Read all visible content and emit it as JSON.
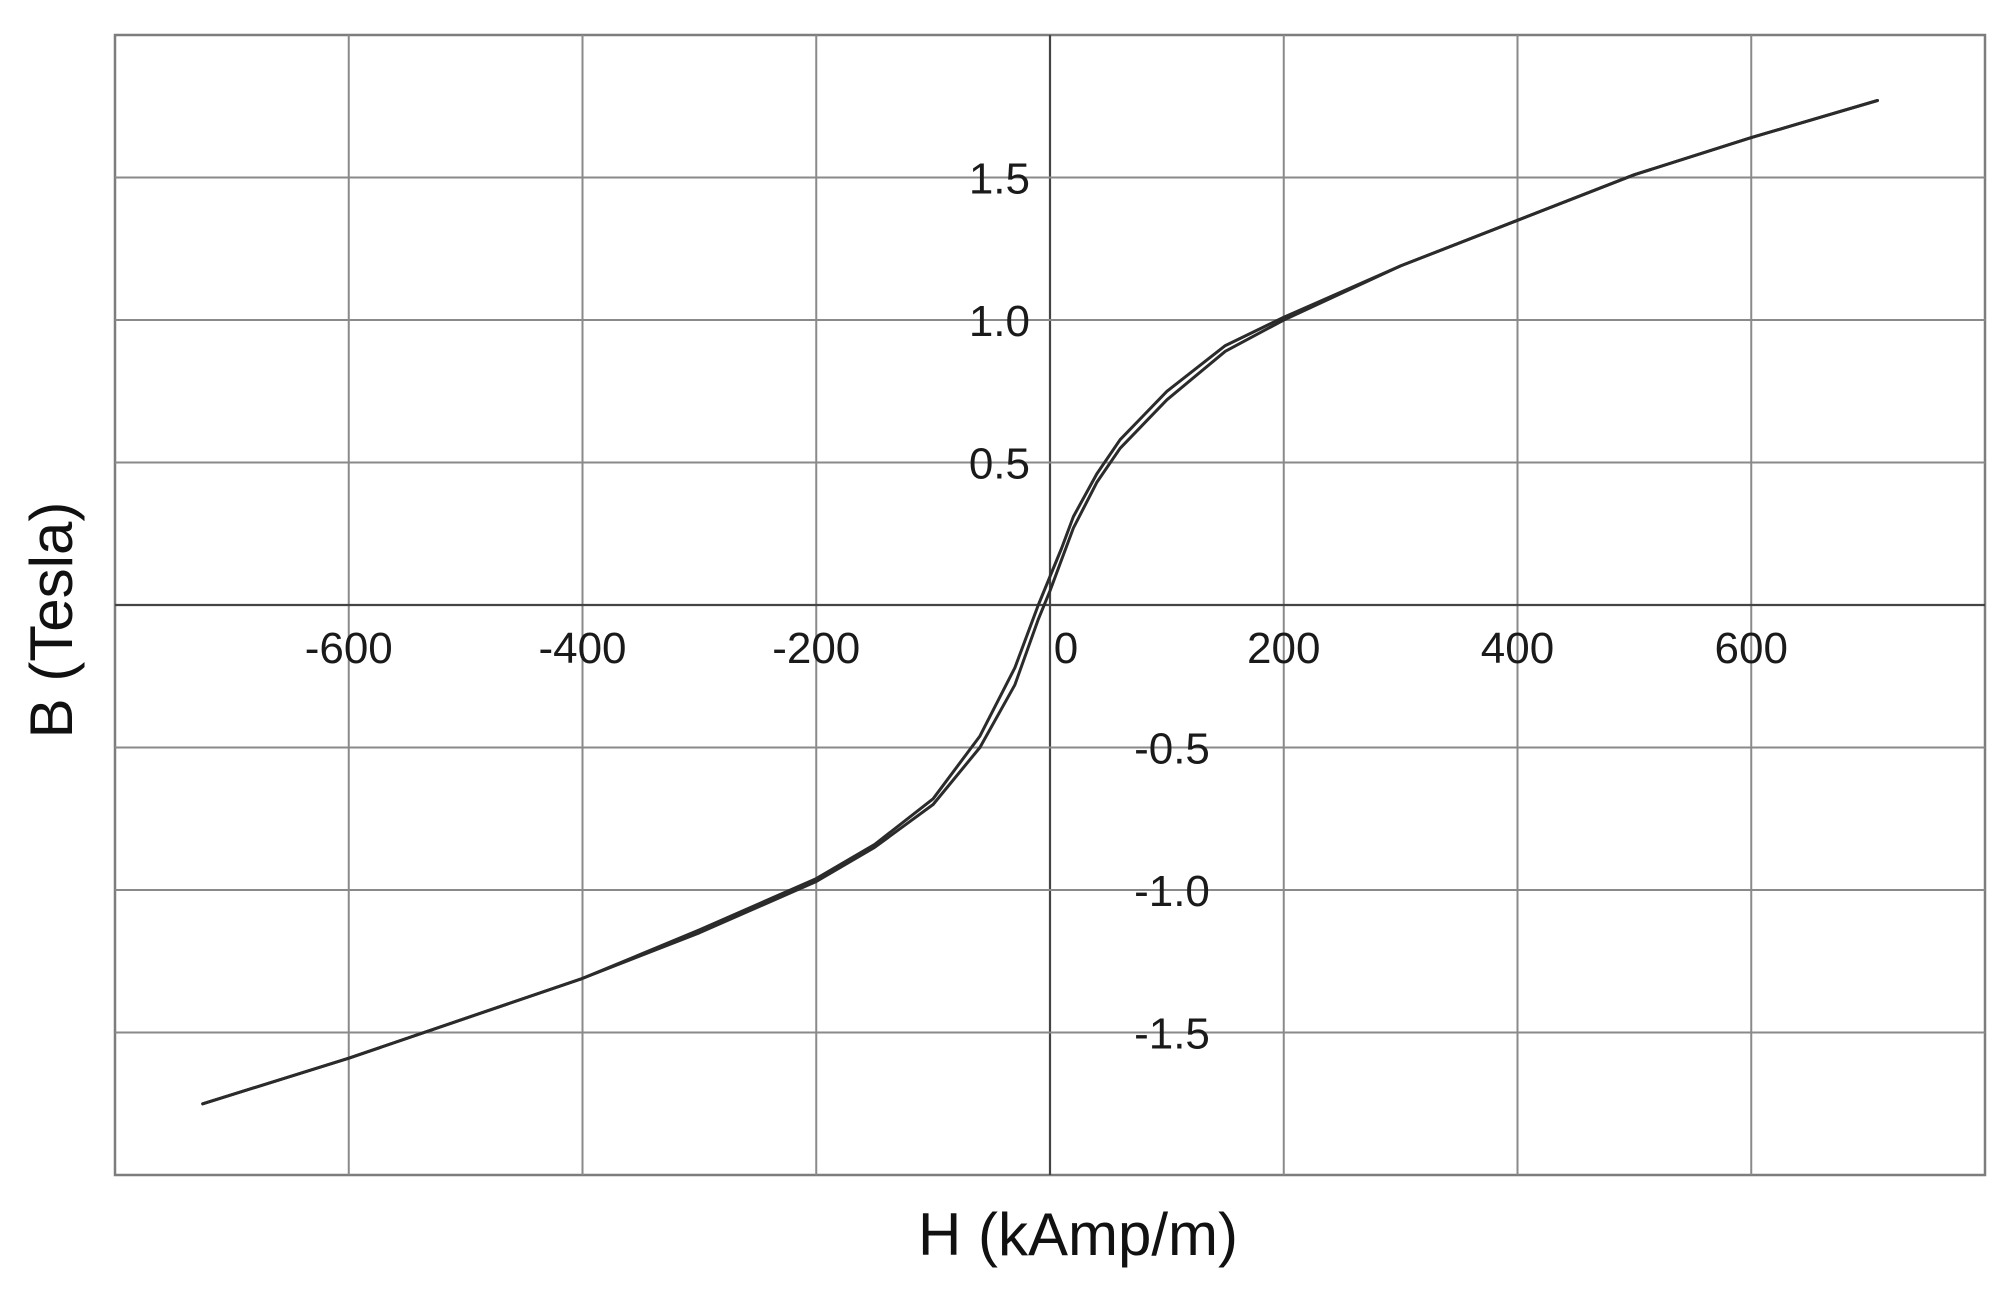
{
  "chart_data": {
    "type": "line",
    "title": "",
    "xlabel": "H (kAmp/m)",
    "ylabel": "B (Tesla)",
    "xlim": [
      -800,
      800
    ],
    "ylim": [
      -2.0,
      2.0
    ],
    "grid": true,
    "legend": "none",
    "x_ticks": [
      -600,
      -400,
      -200,
      0,
      200,
      400,
      600
    ],
    "x_tick_labels": [
      "-600",
      "-400",
      "-200",
      "0",
      "200",
      "400",
      "600"
    ],
    "y_ticks": [
      -1.5,
      -1.0,
      -0.5,
      0.5,
      1.0,
      1.5
    ],
    "y_tick_labels": [
      "-1.5",
      "-1.0",
      "-0.5",
      "0.5",
      "1.0",
      "1.5"
    ],
    "colors": {
      "curve": "#2b2b2b",
      "grid": "#8a8a8a",
      "axis": "#444444"
    },
    "series": [
      {
        "x": [
          -725,
          -600,
          -500,
          -400,
          -300,
          -200,
          -150,
          -100,
          -60,
          -30,
          -10,
          0,
          10,
          20,
          40,
          60,
          100,
          150,
          200,
          300,
          400,
          500,
          600,
          708
        ],
        "y": [
          -1.75,
          -1.59,
          -1.45,
          -1.31,
          -1.15,
          -0.97,
          -0.85,
          -0.7,
          -0.5,
          -0.28,
          -0.05,
          0.05,
          0.16,
          0.27,
          0.43,
          0.55,
          0.72,
          0.89,
          1.0,
          1.19,
          1.35,
          1.51,
          1.64,
          1.77
        ]
      },
      {
        "x": [
          -725,
          -600,
          -500,
          -400,
          -300,
          -200,
          -150,
          -100,
          -60,
          -30,
          -10,
          0,
          10,
          20,
          40,
          60,
          100,
          150,
          200,
          300,
          400,
          500,
          600,
          708
        ],
        "y": [
          -1.75,
          -1.59,
          -1.45,
          -1.31,
          -1.14,
          -0.96,
          -0.84,
          -0.68,
          -0.46,
          -0.22,
          0.0,
          0.1,
          0.2,
          0.31,
          0.46,
          0.58,
          0.75,
          0.91,
          1.01,
          1.19,
          1.35,
          1.51,
          1.64,
          1.77
        ]
      }
    ]
  }
}
